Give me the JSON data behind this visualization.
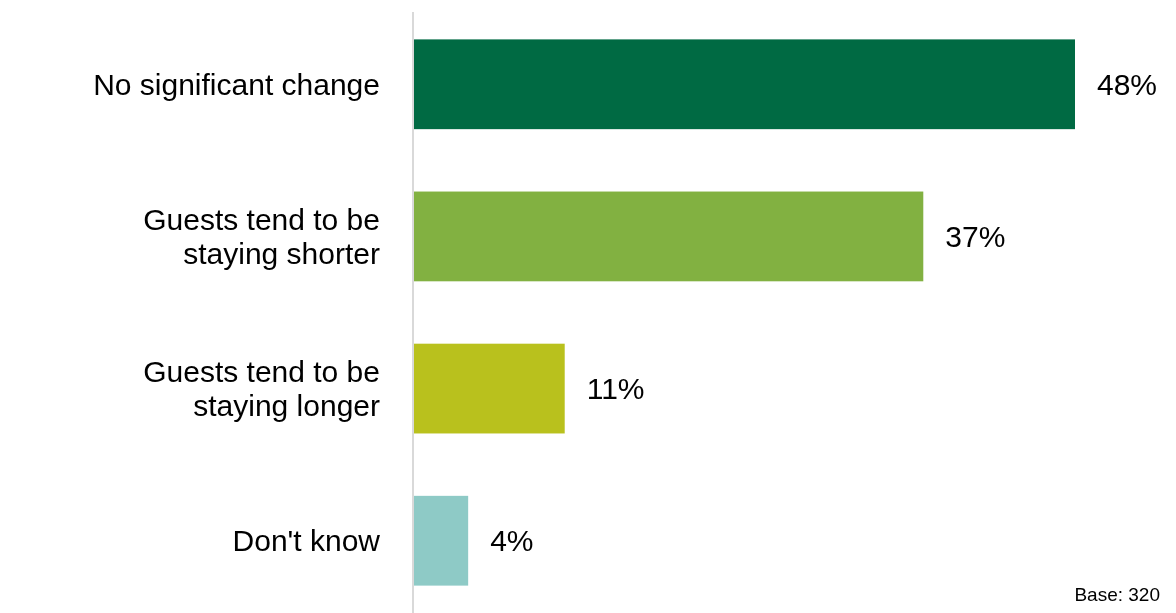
{
  "chart_data": {
    "type": "bar",
    "orientation": "horizontal",
    "categories": [
      "No significant change",
      "Guests tend to be\nstaying shorter",
      "Guests tend to be\nstaying longer",
      "Don't know"
    ],
    "values": [
      48,
      37,
      11,
      4
    ],
    "colors": [
      "#006a43",
      "#82b141",
      "#b9c11d",
      "#8ecac6"
    ],
    "value_labels": [
      "48%",
      "37%",
      "11%",
      "4%"
    ],
    "annotations": [
      "Base: 320"
    ]
  }
}
